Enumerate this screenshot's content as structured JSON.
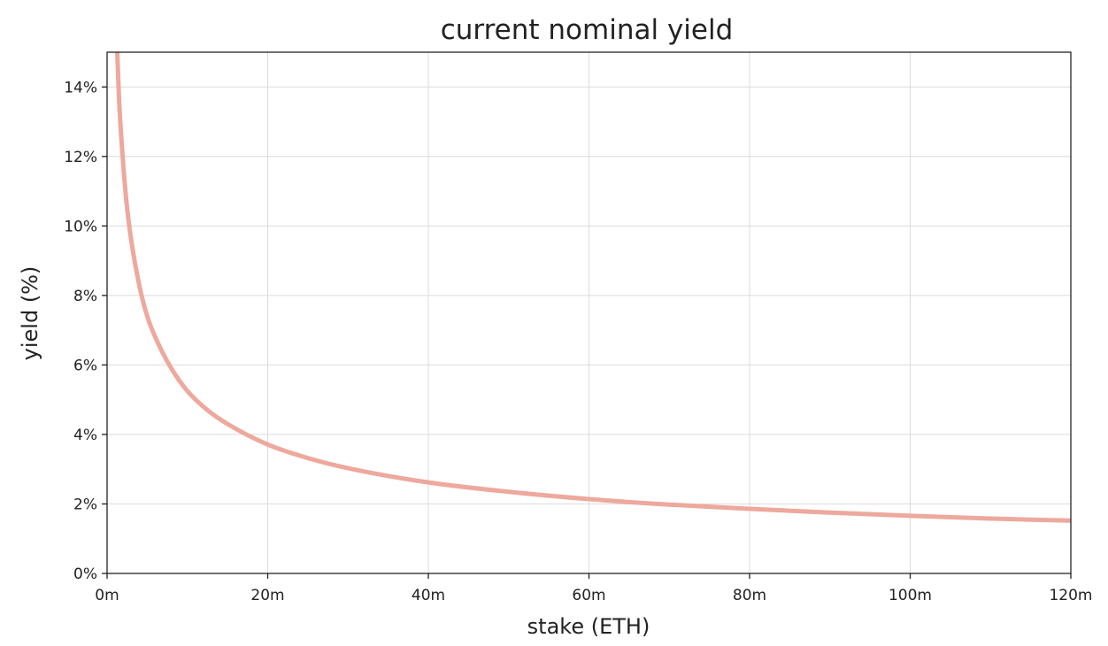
{
  "chart_data": {
    "type": "line",
    "title": "current nominal yield",
    "xlabel": "stake (ETH)",
    "ylabel": "yield (%)",
    "xlim": [
      0,
      120000000
    ],
    "ylim": [
      0,
      15
    ],
    "grid": true,
    "legend": "none",
    "x_ticks": [
      {
        "value": 0,
        "label": "0m"
      },
      {
        "value": 20000000,
        "label": "20m"
      },
      {
        "value": 40000000,
        "label": "40m"
      },
      {
        "value": 60000000,
        "label": "60m"
      },
      {
        "value": 80000000,
        "label": "80m"
      },
      {
        "value": 100000000,
        "label": "100m"
      },
      {
        "value": 120000000,
        "label": "120m"
      }
    ],
    "y_ticks": [
      {
        "value": 0,
        "label": "0%"
      },
      {
        "value": 2,
        "label": "2%"
      },
      {
        "value": 4,
        "label": "4%"
      },
      {
        "value": 6,
        "label": "6%"
      },
      {
        "value": 8,
        "label": "8%"
      },
      {
        "value": 10,
        "label": "10%"
      },
      {
        "value": 12,
        "label": "12%"
      },
      {
        "value": 14,
        "label": "14%"
      }
    ],
    "series": [
      {
        "color": "#eea89d",
        "x": [
          1000000,
          1500000,
          2000000,
          2500000,
          3000000,
          4000000,
          5000000,
          6000000,
          8000000,
          10000000,
          12500000,
          15000000,
          20000000,
          25000000,
          30000000,
          40000000,
          50000000,
          60000000,
          70000000,
          80000000,
          90000000,
          100000000,
          110000000,
          120000000
        ],
        "y": [
          16.6,
          13.6,
          11.8,
          10.5,
          9.6,
          8.3,
          7.4,
          6.8,
          5.9,
          5.25,
          4.7,
          4.3,
          3.71,
          3.32,
          3.03,
          2.62,
          2.35,
          2.14,
          1.98,
          1.86,
          1.75,
          1.66,
          1.58,
          1.52
        ]
      }
    ]
  }
}
